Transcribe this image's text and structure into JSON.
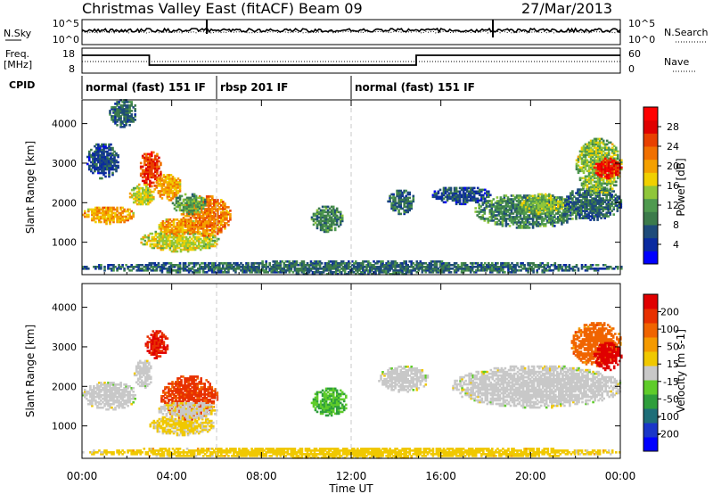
{
  "header": {
    "station": "Christmas Valley East (fitACF)",
    "beam": "Beam 09",
    "date": "27/Mar/2013"
  },
  "top_panels": {
    "nsky_label": "N.Sky",
    "nsearch_label": "N.Search",
    "noise_ticks_left": [
      "10^5",
      "10^0"
    ],
    "noise_ticks_right": [
      "10^5",
      "10^0"
    ],
    "freq_label_1": "Freq.",
    "freq_label_2": "[MHz]",
    "freq_ticks": [
      "18",
      "8"
    ],
    "nave_label": "Nave",
    "nave_ticks": [
      "60",
      "0"
    ],
    "cpid_label": "CPID",
    "cpid_segments": [
      {
        "label": "normal (fast) 151 IF",
        "start_h": 0,
        "end_h": 6
      },
      {
        "label": "rbsp 201 IF",
        "start_h": 6,
        "end_h": 12
      },
      {
        "label": "normal (fast) 151 IF",
        "start_h": 12,
        "end_h": 24
      }
    ]
  },
  "power_colorbar": {
    "title": "Power [dB]",
    "ticks": [
      "28",
      "24",
      "20",
      "16",
      "12",
      "8",
      "4"
    ],
    "colors": [
      "#0000ff",
      "#0a2aa0",
      "#1e4b7a",
      "#3c7b4b",
      "#4f9a4f",
      "#8fc63a",
      "#f0d000",
      "#f4a000",
      "#f07000",
      "#e84000",
      "#e00000",
      "#ff0000"
    ]
  },
  "velocity_colorbar": {
    "title": "Velocity [m s-1]",
    "ticks": [
      "200",
      "100",
      "50",
      "15",
      "-15",
      "-50",
      "-100",
      "-200"
    ],
    "colors": [
      "#0000ff",
      "#1a36c8",
      "#1e6e78",
      "#2f9e3c",
      "#5fcc2a",
      "#c8c8c8",
      "#f0c800",
      "#f59a00",
      "#f06400",
      "#e83000",
      "#e00000"
    ]
  },
  "chart_data": [
    {
      "type": "heatmap",
      "name": "power",
      "xlabel": "Time UT",
      "ylabel": "Slant Range [km]",
      "x_unit": "hours UT",
      "xlim": [
        0,
        24
      ],
      "ylim": [
        180,
        4600
      ],
      "x_ticks": [
        "00:00",
        "04:00",
        "08:00",
        "12:00",
        "16:00",
        "20:00",
        "00:00"
      ],
      "y_ticks": [
        "1000",
        "2000",
        "3000",
        "4000"
      ],
      "colorbar": "Power [dB]",
      "regions": [
        {
          "t": [
            0.0,
            2.3
          ],
          "r": [
            1450,
            1900
          ],
          "v": 20
        },
        {
          "t": [
            0.2,
            1.6
          ],
          "r": [
            2600,
            3500
          ],
          "v": 6
        },
        {
          "t": [
            1.2,
            2.4
          ],
          "r": [
            3900,
            4600
          ],
          "v": 8
        },
        {
          "t": [
            2.1,
            3.2
          ],
          "r": [
            1900,
            2450
          ],
          "v": 16
        },
        {
          "t": [
            2.5,
            3.5
          ],
          "r": [
            2400,
            3300
          ],
          "v": 26
        },
        {
          "t": [
            3.2,
            4.4
          ],
          "r": [
            2050,
            2700
          ],
          "v": 20
        },
        {
          "t": [
            2.6,
            6.1
          ],
          "r": [
            750,
            1300
          ],
          "v": 16
        },
        {
          "t": [
            3.4,
            5.1
          ],
          "r": [
            1150,
            1600
          ],
          "v": 20
        },
        {
          "t": [
            4.4,
            6.6
          ],
          "r": [
            1150,
            2150
          ],
          "v": 22
        },
        {
          "t": [
            4.0,
            5.5
          ],
          "r": [
            1700,
            2200
          ],
          "v": 12
        },
        {
          "t": [
            10.2,
            11.6
          ],
          "r": [
            1250,
            1900
          ],
          "v": 10
        },
        {
          "t": [
            13.6,
            14.8
          ],
          "r": [
            1700,
            2300
          ],
          "v": 8
        },
        {
          "t": [
            15.6,
            18.2
          ],
          "r": [
            1950,
            2400
          ],
          "v": 6
        },
        {
          "t": [
            17.5,
            22.2
          ],
          "r": [
            1350,
            2200
          ],
          "v": 10
        },
        {
          "t": [
            19.5,
            21.5
          ],
          "r": [
            1700,
            2200
          ],
          "v": 14
        },
        {
          "t": [
            21.5,
            24.0
          ],
          "r": [
            1550,
            2400
          ],
          "v": 8
        },
        {
          "t": [
            22.0,
            24.0
          ],
          "r": [
            2200,
            3600
          ],
          "v": 14
        },
        {
          "t": [
            22.8,
            24.0
          ],
          "r": [
            2600,
            3100
          ],
          "v": 28
        },
        {
          "t": [
            0.0,
            24.0
          ],
          "r": [
            180,
            500
          ],
          "v": 8
        }
      ]
    },
    {
      "type": "heatmap",
      "name": "velocity",
      "xlabel": "Time UT",
      "ylabel": "Slant Range [km]",
      "x_unit": "hours UT",
      "xlim": [
        0,
        24
      ],
      "ylim": [
        180,
        4600
      ],
      "x_ticks": [
        "00:00",
        "04:00",
        "08:00",
        "12:00",
        "16:00",
        "20:00",
        "00:00"
      ],
      "y_ticks": [
        "1000",
        "2000",
        "3000",
        "4000"
      ],
      "colorbar": "Velocity [m s-1]",
      "regions": [
        {
          "t": [
            0.0,
            2.4
          ],
          "r": [
            1400,
            2100
          ],
          "v": 0
        },
        {
          "t": [
            2.3,
            3.1
          ],
          "r": [
            1950,
            2650
          ],
          "v": 0
        },
        {
          "t": [
            2.8,
            3.8
          ],
          "r": [
            2700,
            3400
          ],
          "v": 180
        },
        {
          "t": [
            3.0,
            5.9
          ],
          "r": [
            750,
            1250
          ],
          "v": 30
        },
        {
          "t": [
            3.5,
            6.0
          ],
          "r": [
            1150,
            2250
          ],
          "v": 150
        },
        {
          "t": [
            3.4,
            6.0
          ],
          "r": [
            1150,
            1600
          ],
          "v": 10
        },
        {
          "t": [
            10.2,
            11.8
          ],
          "r": [
            1250,
            1950
          ],
          "v": -60
        },
        {
          "t": [
            13.2,
            15.4
          ],
          "r": [
            1850,
            2500
          ],
          "v": 0
        },
        {
          "t": [
            16.5,
            24.0
          ],
          "r": [
            1450,
            2500
          ],
          "v": 0
        },
        {
          "t": [
            21.8,
            24.0
          ],
          "r": [
            2500,
            3600
          ],
          "v": 120
        },
        {
          "t": [
            22.8,
            24.0
          ],
          "r": [
            2400,
            3100
          ],
          "v": 220
        },
        {
          "t": [
            0.0,
            24.0
          ],
          "r": [
            180,
            450
          ],
          "v": 40
        }
      ]
    }
  ]
}
